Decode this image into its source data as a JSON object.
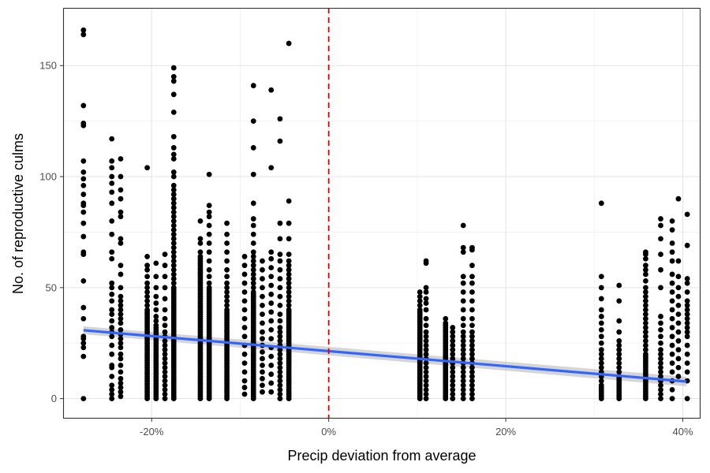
{
  "chart_data": {
    "type": "scatter",
    "title": "",
    "xlabel": "Precip deviation from average",
    "ylabel": "No. of reproductive culms",
    "xlim": [
      -30,
      42
    ],
    "ylim": [
      -9,
      176
    ],
    "x_ticks": [
      {
        "value": -20,
        "label": "-20%"
      },
      {
        "value": 0,
        "label": "0%"
      },
      {
        "value": 20,
        "label": "20%"
      },
      {
        "value": 40,
        "label": "40%"
      }
    ],
    "y_ticks": [
      {
        "value": 0,
        "label": "0"
      },
      {
        "value": 50,
        "label": "50"
      },
      {
        "value": 100,
        "label": "100"
      },
      {
        "value": 150,
        "label": "150"
      }
    ],
    "grid": true,
    "reference_line": {
      "x": 0,
      "style": "dashed",
      "color": "#e00000"
    },
    "trend_line": {
      "x": [
        -27.7,
        40.4
      ],
      "y": [
        30.8,
        7.7
      ],
      "color": "#3366ff",
      "ci_color": "#b3b3b3"
    },
    "point_color": "#000000",
    "groups": [
      {
        "x": -27.7,
        "y": [
          0,
          19,
          23,
          25,
          27,
          28,
          36,
          41,
          53,
          65,
          66,
          73,
          79,
          84,
          87,
          88,
          92,
          96,
          99,
          102,
          107,
          123,
          124,
          132,
          164,
          166
        ]
      },
      {
        "x": -24.5,
        "y": [
          0,
          2,
          4,
          6,
          10,
          14,
          15,
          20,
          24,
          28,
          30,
          32,
          35,
          38,
          40,
          44,
          47,
          50,
          52,
          63,
          66,
          74,
          80,
          88,
          93,
          97,
          100,
          104,
          107,
          117
        ]
      },
      {
        "x": -23.5,
        "y": [
          1,
          3,
          5,
          7,
          9,
          12,
          15,
          18,
          20,
          23,
          25,
          27,
          29,
          31,
          34,
          36,
          38,
          40,
          42,
          44,
          46,
          50,
          56,
          60,
          70,
          72,
          82,
          84,
          90,
          94,
          100,
          108
        ]
      },
      {
        "x": -20.5,
        "y": [
          0,
          1,
          2,
          3,
          4,
          5,
          6,
          7,
          8,
          9,
          10,
          11,
          12,
          13,
          14,
          15,
          16,
          17,
          18,
          19,
          20,
          21,
          22,
          23,
          24,
          25,
          26,
          27,
          28,
          29,
          30,
          31,
          32,
          33,
          34,
          35,
          36,
          37,
          38,
          39,
          40,
          42,
          44,
          46,
          48,
          50,
          52,
          55,
          58,
          60,
          64,
          104
        ]
      },
      {
        "x": -19.5,
        "y": [
          0,
          1,
          2,
          3,
          4,
          5,
          6,
          7,
          8,
          9,
          10,
          11,
          12,
          13,
          14,
          15,
          16,
          17,
          18,
          19,
          20,
          21,
          22,
          23,
          24,
          25,
          26,
          27,
          28,
          29,
          30,
          31,
          32,
          33,
          35,
          37,
          40,
          43,
          46,
          50,
          55,
          61
        ]
      },
      {
        "x": -18.5,
        "y": [
          0,
          2,
          4,
          6,
          8,
          10,
          12,
          14,
          16,
          18,
          20,
          22,
          24,
          26,
          28,
          30,
          33,
          36,
          40,
          45,
          50,
          55,
          60,
          65
        ]
      },
      {
        "x": -17.5,
        "y": [
          0,
          1,
          2,
          3,
          4,
          5,
          6,
          7,
          8,
          9,
          10,
          11,
          12,
          13,
          14,
          15,
          16,
          17,
          18,
          19,
          20,
          21,
          22,
          23,
          24,
          25,
          26,
          27,
          28,
          29,
          30,
          31,
          32,
          33,
          34,
          35,
          36,
          37,
          38,
          39,
          40,
          41,
          42,
          43,
          44,
          45,
          46,
          47,
          48,
          49,
          50,
          52,
          54,
          56,
          58,
          60,
          62,
          64,
          66,
          68,
          70,
          72,
          74,
          76,
          78,
          80,
          82,
          84,
          86,
          88,
          90,
          92,
          94,
          96,
          100,
          102,
          108,
          110,
          113,
          118,
          129,
          137,
          143,
          145,
          149
        ]
      },
      {
        "x": -14.5,
        "y": [
          0,
          1,
          2,
          3,
          4,
          5,
          6,
          7,
          8,
          9,
          10,
          11,
          12,
          13,
          14,
          15,
          16,
          17,
          18,
          19,
          20,
          21,
          22,
          23,
          24,
          25,
          26,
          27,
          28,
          29,
          30,
          31,
          32,
          33,
          34,
          35,
          36,
          37,
          38,
          39,
          40,
          41,
          42,
          43,
          44,
          45,
          46,
          47,
          48,
          49,
          50,
          51,
          52,
          53,
          54,
          55,
          56,
          57,
          58,
          59,
          60,
          61,
          62,
          63,
          64,
          66,
          70,
          72,
          80
        ]
      },
      {
        "x": -13.5,
        "y": [
          0,
          1,
          2,
          3,
          4,
          5,
          6,
          7,
          8,
          9,
          10,
          11,
          12,
          13,
          14,
          15,
          16,
          17,
          18,
          19,
          20,
          21,
          22,
          23,
          24,
          25,
          26,
          27,
          28,
          29,
          30,
          31,
          32,
          33,
          34,
          35,
          36,
          37,
          38,
          39,
          40,
          41,
          42,
          43,
          44,
          45,
          46,
          47,
          48,
          49,
          50,
          52,
          55,
          58,
          62,
          66,
          70,
          74,
          78,
          82,
          84,
          87,
          101
        ]
      },
      {
        "x": -11.5,
        "y": [
          0,
          1,
          2,
          3,
          4,
          5,
          6,
          7,
          8,
          9,
          10,
          11,
          12,
          13,
          14,
          15,
          16,
          17,
          18,
          19,
          20,
          21,
          22,
          23,
          24,
          25,
          26,
          27,
          28,
          29,
          30,
          31,
          32,
          33,
          34,
          35,
          36,
          37,
          38,
          39,
          40,
          42,
          44,
          46,
          48,
          50,
          52,
          55,
          58,
          62,
          66,
          70,
          74,
          79
        ]
      },
      {
        "x": -9.5,
        "y": [
          2,
          5,
          8,
          12,
          16,
          20,
          24,
          28,
          32,
          36,
          40,
          44,
          48,
          52,
          56,
          60,
          64
        ]
      },
      {
        "x": -8.5,
        "y": [
          0,
          1,
          2,
          3,
          4,
          5,
          6,
          7,
          8,
          9,
          10,
          11,
          12,
          13,
          14,
          15,
          16,
          17,
          18,
          19,
          20,
          21,
          22,
          23,
          24,
          25,
          26,
          27,
          28,
          29,
          30,
          31,
          32,
          33,
          34,
          35,
          36,
          37,
          38,
          39,
          40,
          41,
          42,
          43,
          44,
          45,
          46,
          47,
          48,
          50,
          52,
          54,
          56,
          58,
          60,
          62,
          64,
          66,
          70,
          74,
          78,
          81,
          88,
          101,
          113,
          125,
          141
        ]
      },
      {
        "x": -7.5,
        "y": [
          3,
          6,
          9,
          12,
          15,
          18,
          21,
          24,
          27,
          30,
          34,
          38,
          42,
          46,
          50,
          54,
          58,
          62
        ]
      },
      {
        "x": -6.5,
        "y": [
          3,
          7,
          11,
          15,
          19,
          23,
          27,
          31,
          35,
          39,
          43,
          47,
          51,
          55,
          59,
          63,
          66,
          104,
          139
        ]
      },
      {
        "x": -5.5,
        "y": [
          0,
          2,
          4,
          6,
          8,
          10,
          12,
          14,
          16,
          18,
          20,
          22,
          24,
          26,
          28,
          30,
          32,
          35,
          38,
          42,
          46,
          50,
          54,
          58,
          62,
          65,
          72,
          79,
          116,
          126
        ]
      },
      {
        "x": -4.5,
        "y": [
          0,
          1,
          2,
          3,
          4,
          5,
          6,
          7,
          8,
          9,
          10,
          11,
          12,
          13,
          14,
          15,
          16,
          17,
          18,
          19,
          20,
          21,
          22,
          23,
          24,
          25,
          26,
          27,
          28,
          29,
          30,
          31,
          32,
          33,
          34,
          35,
          36,
          37,
          38,
          39,
          40,
          42,
          44,
          46,
          48,
          50,
          52,
          54,
          56,
          58,
          60,
          62,
          65,
          72,
          79,
          89,
          160
        ]
      },
      {
        "x": 10.3,
        "y": [
          0,
          1,
          2,
          3,
          4,
          5,
          6,
          7,
          8,
          9,
          10,
          11,
          12,
          13,
          14,
          15,
          16,
          17,
          18,
          19,
          20,
          21,
          22,
          23,
          24,
          25,
          26,
          27,
          28,
          29,
          30,
          31,
          32,
          33,
          34,
          35,
          36,
          37,
          38,
          39,
          40,
          42,
          44,
          46,
          48
        ]
      },
      {
        "x": 11.0,
        "y": [
          0,
          2,
          4,
          6,
          8,
          10,
          12,
          14,
          16,
          18,
          20,
          22,
          24,
          26,
          28,
          30,
          33,
          36,
          40,
          43,
          45,
          48,
          50,
          61,
          62
        ]
      },
      {
        "x": 13.2,
        "y": [
          0,
          1,
          2,
          3,
          4,
          5,
          6,
          7,
          8,
          9,
          10,
          11,
          12,
          13,
          14,
          15,
          16,
          17,
          18,
          19,
          20,
          21,
          22,
          23,
          24,
          25,
          26,
          27,
          28,
          29,
          30,
          31,
          32,
          33,
          34,
          36
        ]
      },
      {
        "x": 14.0,
        "y": [
          0,
          2,
          4,
          6,
          8,
          10,
          12,
          14,
          16,
          18,
          20,
          22,
          24,
          26,
          28,
          30,
          32
        ]
      },
      {
        "x": 15.2,
        "y": [
          0,
          2,
          4,
          6,
          8,
          10,
          12,
          14,
          16,
          18,
          20,
          22,
          24,
          26,
          28,
          30,
          33,
          36,
          40,
          44,
          48,
          52,
          55,
          66,
          68,
          78
        ]
      },
      {
        "x": 16.2,
        "y": [
          0,
          2,
          4,
          6,
          8,
          10,
          12,
          14,
          16,
          18,
          20,
          22,
          24,
          26,
          28,
          30,
          33,
          36,
          40,
          44,
          48,
          52,
          55,
          60,
          67,
          68
        ]
      },
      {
        "x": 30.8,
        "y": [
          0,
          1,
          2,
          3,
          4,
          5,
          6,
          8,
          10,
          12,
          14,
          16,
          18,
          20,
          22,
          25,
          28,
          31,
          34,
          37,
          40,
          45,
          50,
          55,
          88
        ]
      },
      {
        "x": 32.8,
        "y": [
          0,
          1,
          2,
          3,
          4,
          5,
          6,
          7,
          8,
          9,
          10,
          12,
          14,
          16,
          18,
          20,
          22,
          24,
          26,
          30,
          35,
          44,
          51
        ]
      },
      {
        "x": 35.8,
        "y": [
          0,
          1,
          2,
          3,
          4,
          5,
          6,
          7,
          8,
          9,
          10,
          11,
          12,
          13,
          14,
          15,
          16,
          17,
          18,
          19,
          20,
          22,
          24,
          26,
          28,
          30,
          32,
          34,
          36,
          38,
          40,
          42,
          44,
          46,
          48,
          50,
          53,
          56,
          58,
          60,
          63,
          65,
          66
        ]
      },
      {
        "x": 37.5,
        "y": [
          0,
          2,
          4,
          6,
          8,
          10,
          12,
          14,
          16,
          18,
          20,
          22,
          25,
          28,
          31,
          34,
          37,
          50,
          58,
          65,
          72,
          78,
          81
        ]
      },
      {
        "x": 38.8,
        "y": [
          0,
          4,
          8,
          12,
          16,
          20,
          24,
          28,
          32,
          36,
          40,
          44,
          48,
          52,
          56,
          62,
          66,
          70,
          76,
          80
        ]
      },
      {
        "x": 39.5,
        "y": [
          10,
          14,
          18,
          22,
          26,
          30,
          34,
          38,
          42,
          46,
          50,
          55,
          62,
          90
        ]
      },
      {
        "x": 40.5,
        "y": [
          0,
          8,
          12,
          16,
          20,
          24,
          28,
          30,
          32,
          34,
          36,
          38,
          40,
          42,
          44,
          48,
          52,
          54,
          69,
          83
        ]
      }
    ]
  }
}
